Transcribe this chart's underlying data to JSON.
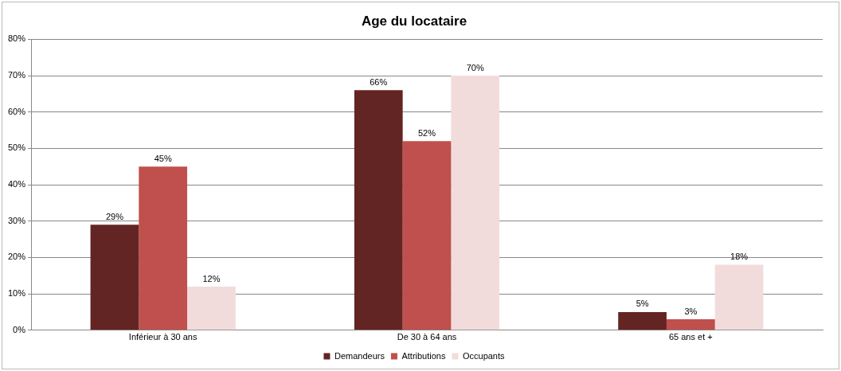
{
  "chart_data": {
    "type": "bar",
    "title": "Age du locataire",
    "categories": [
      "Inférieur à 30 ans",
      "De 30 à 64 ans",
      "65 ans et +"
    ],
    "series": [
      {
        "name": "Demandeurs",
        "color": "#632523",
        "values": [
          29,
          66,
          5
        ],
        "value_labels": [
          "29%",
          "66%",
          "5%"
        ]
      },
      {
        "name": "Attributions",
        "color": "#c0504d",
        "values": [
          45,
          52,
          3
        ],
        "value_labels": [
          "45%",
          "52%",
          "3%"
        ]
      },
      {
        "name": "Occupants",
        "color": "#f2dcdb",
        "values": [
          12,
          70,
          18
        ],
        "value_labels": [
          "12%",
          "70%",
          "18%"
        ]
      }
    ],
    "ylim": [
      0,
      80
    ],
    "yticks": [
      {
        "value": 0,
        "label": "0%"
      },
      {
        "value": 10,
        "label": "10%"
      },
      {
        "value": 20,
        "label": "20%"
      },
      {
        "value": 30,
        "label": "30%"
      },
      {
        "value": 40,
        "label": "40%"
      },
      {
        "value": 50,
        "label": "50%"
      },
      {
        "value": 60,
        "label": "60%"
      },
      {
        "value": 70,
        "label": "70%"
      },
      {
        "value": 80,
        "label": "80%"
      }
    ],
    "grid": "y",
    "legend": "bottom"
  }
}
